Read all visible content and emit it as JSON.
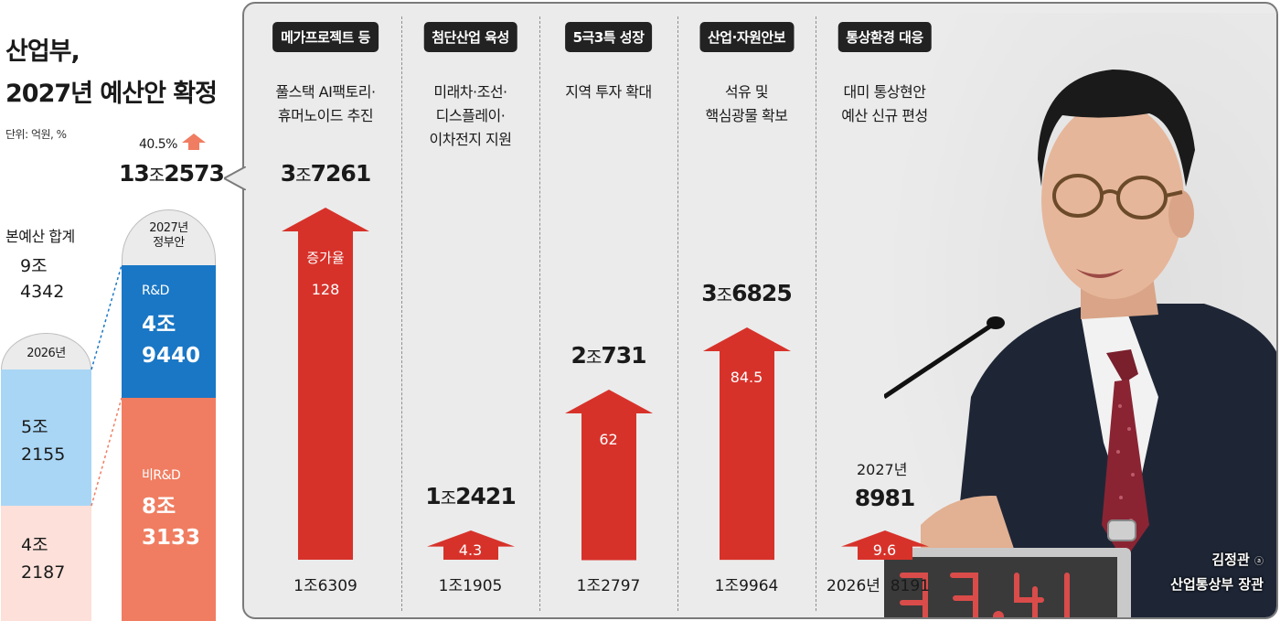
{
  "title": [
    "산업부,",
    "2027년 예산안 확정"
  ],
  "unit": "단위: 억원, %",
  "summary": {
    "base_label": "본예산 합계",
    "base_total": [
      "9조",
      "4342"
    ],
    "increase_rate": "40.5%",
    "proposed_total_parts": [
      "13",
      "조",
      "2573"
    ],
    "year_2026": "2026년",
    "year_2027": [
      "2027년",
      "정부안"
    ]
  },
  "colors": {
    "rnd_2026": "#a9d6f5",
    "non_rnd_2026": "#fce0d9",
    "rnd_2027": "#1a77c5",
    "non_rnd_2027": "#f07d61",
    "arrow": "#d7322a",
    "panel_bg": "#ebebeb"
  },
  "chart_data": [
    {
      "type": "bar",
      "stacked": true,
      "categories": [
        "2026년",
        "2027년 정부안"
      ],
      "series": [
        {
          "name": "R&D",
          "values": [
            52155,
            49440
          ],
          "labels": [
            [
              "5조",
              "2155"
            ],
            [
              "4조",
              "9440"
            ]
          ]
        },
        {
          "name": "비R&D",
          "values": [
            42187,
            83133
          ],
          "labels": [
            [
              "4조",
              "2187"
            ],
            [
              "8조",
              "3133"
            ]
          ]
        }
      ],
      "totals": [
        94342,
        132573
      ]
    },
    {
      "type": "bar",
      "categories": [
        "메가프로젝트 등",
        "첨단산업 육성",
        "5극3특 성장",
        "산업·자원안보",
        "통상환경 대응"
      ],
      "descriptions": [
        [
          "풀스택 AI팩토리·",
          "휴머노이드 추진"
        ],
        [
          "미래차·조선·",
          "디스플레이·",
          "이차전지 지원"
        ],
        [
          "지역 투자 확대"
        ],
        [
          "석유 및",
          "핵심광물 확보"
        ],
        [
          "대미 통상현안",
          "예산 신규 편성"
        ]
      ],
      "series": [
        {
          "name": "2026년",
          "values": [
            16309,
            11905,
            12797,
            19964,
            8191
          ],
          "labels": [
            "1조6309",
            "1조1905",
            "1조2797",
            "1조9964",
            "8191"
          ]
        },
        {
          "name": "2027년",
          "values": [
            37261,
            12421,
            20731,
            36825,
            8981
          ],
          "labels": [
            [
              "3",
              "조",
              "7261"
            ],
            [
              "1",
              "조",
              "2421"
            ],
            [
              "2",
              "조",
              "731"
            ],
            [
              "3",
              "조",
              "6825"
            ],
            [
              "",
              "",
              "8981"
            ]
          ]
        }
      ],
      "growth_rate_label": "증가율",
      "growth_rates": [
        128,
        4.3,
        62,
        84.5,
        9.6
      ],
      "axis_year_labels": {
        "y2026": "2026년",
        "y2027": "2027년"
      }
    }
  ],
  "caption": {
    "name": "김정관",
    "title": "산업통상부 장관",
    "mark": "ⓐ"
  }
}
